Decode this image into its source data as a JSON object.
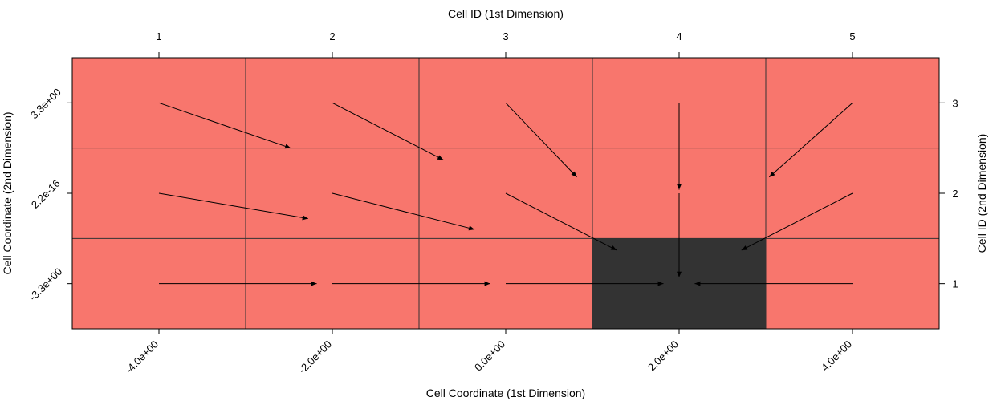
{
  "chart_data": {
    "type": "heatmap",
    "title": "",
    "xlabel": "Cell Coordinate (1st Dimension)",
    "ylabel": "Cell Coordinate (2nd Dimension)",
    "x2label": "Cell ID (1st Dimension)",
    "y2label": "Cell ID (2nd Dimension)",
    "xlim": [
      -5,
      5
    ],
    "ylim": [
      0.5,
      3.5
    ],
    "x_tick_labels": [
      "-4.0e+00",
      "-2.0e+00",
      "0.0e+00",
      "2.0e+00",
      "4.0e+00"
    ],
    "y_tick_labels": [
      "-3.3e+00",
      "2.2e-16",
      "3.3e+00"
    ],
    "x2_tick_labels": [
      "1",
      "2",
      "3",
      "4",
      "5"
    ],
    "y2_tick_labels": [
      "1",
      "2",
      "3"
    ],
    "grid": true,
    "cell_colors": {
      "default": "#f8766d",
      "highlight": "#333333"
    },
    "cells": [
      {
        "col": 1,
        "row": 1,
        "value": "default"
      },
      {
        "col": 2,
        "row": 1,
        "value": "default"
      },
      {
        "col": 3,
        "row": 1,
        "value": "default"
      },
      {
        "col": 4,
        "row": 1,
        "value": "highlight"
      },
      {
        "col": 5,
        "row": 1,
        "value": "default"
      },
      {
        "col": 1,
        "row": 2,
        "value": "default"
      },
      {
        "col": 2,
        "row": 2,
        "value": "default"
      },
      {
        "col": 3,
        "row": 2,
        "value": "default"
      },
      {
        "col": 4,
        "row": 2,
        "value": "default"
      },
      {
        "col": 5,
        "row": 2,
        "value": "default"
      },
      {
        "col": 1,
        "row": 3,
        "value": "default"
      },
      {
        "col": 2,
        "row": 3,
        "value": "default"
      },
      {
        "col": 3,
        "row": 3,
        "value": "default"
      },
      {
        "col": 4,
        "row": 3,
        "value": "default"
      },
      {
        "col": 5,
        "row": 3,
        "value": "default"
      }
    ],
    "arrows": [
      {
        "from": [
          1,
          3
        ],
        "to": [
          1.76,
          2.5
        ]
      },
      {
        "from": [
          2,
          3
        ],
        "to": [
          2.64,
          2.37
        ]
      },
      {
        "from": [
          3,
          3
        ],
        "to": [
          3.41,
          2.18
        ]
      },
      {
        "from": [
          4,
          3
        ],
        "to": [
          4,
          2.04
        ]
      },
      {
        "from": [
          5,
          3
        ],
        "to": [
          4.52,
          2.18
        ]
      },
      {
        "from": [
          1,
          2
        ],
        "to": [
          1.86,
          1.72
        ]
      },
      {
        "from": [
          2,
          2
        ],
        "to": [
          2.82,
          1.6
        ]
      },
      {
        "from": [
          3,
          2
        ],
        "to": [
          3.64,
          1.37
        ]
      },
      {
        "from": [
          4,
          2
        ],
        "to": [
          4,
          1.07
        ]
      },
      {
        "from": [
          5,
          2
        ],
        "to": [
          4.36,
          1.37
        ]
      },
      {
        "from": [
          1,
          1
        ],
        "to": [
          1.91,
          1
        ]
      },
      {
        "from": [
          2,
          1
        ],
        "to": [
          2.91,
          1
        ]
      },
      {
        "from": [
          3,
          1
        ],
        "to": [
          3.91,
          1
        ]
      },
      {
        "from": [
          5,
          1
        ],
        "to": [
          4.09,
          1
        ]
      }
    ],
    "arrow_color": "#000000"
  }
}
